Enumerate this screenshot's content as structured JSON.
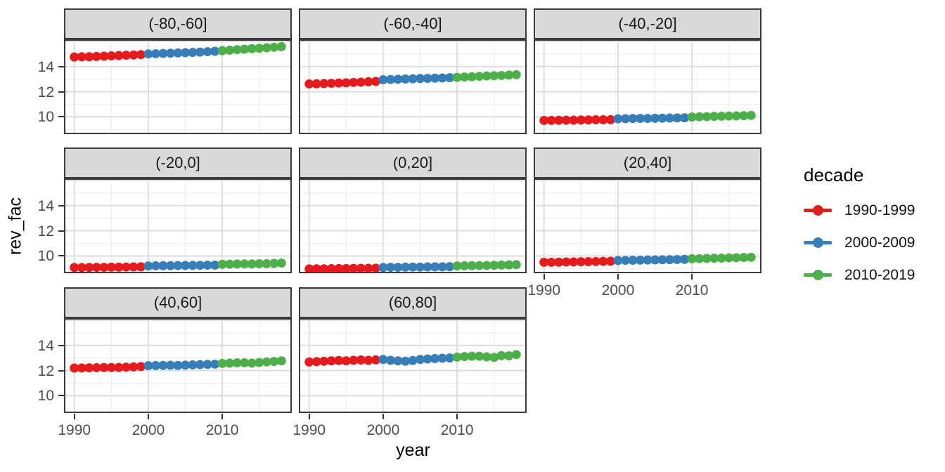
{
  "chart_data": {
    "type": "scatter",
    "title": "",
    "xlabel": "year",
    "ylabel": "rev_fac",
    "legend_title": "decade",
    "legend_position": "right",
    "grid": true,
    "x": [
      1990,
      1991,
      1992,
      1993,
      1994,
      1995,
      1996,
      1997,
      1998,
      1999,
      2000,
      2001,
      2002,
      2003,
      2004,
      2005,
      2006,
      2007,
      2008,
      2009,
      2010,
      2011,
      2012,
      2013,
      2014,
      2015,
      2016,
      2017,
      2018
    ],
    "xticks": [
      1990,
      2000,
      2010
    ],
    "yticks": [
      14,
      12,
      10
    ],
    "xlim": [
      1988.6,
      2019.4
    ],
    "ylim": [
      8.63,
      16.16
    ],
    "grid_major_y": [
      10,
      12,
      14,
      16
    ],
    "grid_minor_y": [
      9,
      11,
      13,
      15
    ],
    "grid_major_x": [
      1990,
      2000,
      2010
    ],
    "grid_minor_x": [
      1995,
      2005,
      2015
    ],
    "decades": [
      {
        "name": "1990-1999",
        "color": "#E41A1C",
        "start": 1990,
        "end": 1999
      },
      {
        "name": "2000-2009",
        "color": "#377EB8",
        "start": 2000,
        "end": 2009
      },
      {
        "name": "2010-2019",
        "color": "#4DAF4A",
        "start": 2010,
        "end": 2019
      }
    ],
    "facets": [
      {
        "label": "(-80,-60]",
        "values": [
          14.76,
          14.77,
          14.78,
          14.8,
          14.82,
          14.85,
          14.87,
          14.9,
          14.92,
          14.95,
          15.0,
          15.02,
          15.04,
          15.06,
          15.08,
          15.1,
          15.12,
          15.15,
          15.18,
          15.21,
          15.26,
          15.3,
          15.34,
          15.38,
          15.42,
          15.45,
          15.49,
          15.53,
          15.58
        ]
      },
      {
        "label": "(-60,-40]",
        "values": [
          12.62,
          12.63,
          12.65,
          12.67,
          12.69,
          12.71,
          12.74,
          12.76,
          12.79,
          12.82,
          12.95,
          12.97,
          12.99,
          13.01,
          13.03,
          13.05,
          13.06,
          13.08,
          13.09,
          13.11,
          13.14,
          13.17,
          13.19,
          13.22,
          13.25,
          13.27,
          13.29,
          13.32,
          13.35
        ]
      },
      {
        "label": "(-40,-20]",
        "values": [
          9.72,
          9.72,
          9.73,
          9.74,
          9.74,
          9.75,
          9.76,
          9.77,
          9.77,
          9.78,
          9.85,
          9.86,
          9.87,
          9.88,
          9.88,
          9.89,
          9.9,
          9.91,
          9.92,
          9.93,
          9.99,
          10.01,
          10.02,
          10.04,
          10.05,
          10.07,
          10.08,
          10.1,
          10.12
        ]
      },
      {
        "label": "(-20,0]",
        "values": [
          9.08,
          9.08,
          9.09,
          9.1,
          9.1,
          9.11,
          9.11,
          9.12,
          9.13,
          9.14,
          9.21,
          9.22,
          9.23,
          9.23,
          9.24,
          9.25,
          9.25,
          9.26,
          9.27,
          9.27,
          9.34,
          9.35,
          9.36,
          9.37,
          9.37,
          9.38,
          9.39,
          9.41,
          9.44
        ]
      },
      {
        "label": "(0,20]",
        "values": [
          8.97,
          8.98,
          8.98,
          8.99,
          9.0,
          9.0,
          9.01,
          9.02,
          9.02,
          9.03,
          9.09,
          9.1,
          9.1,
          9.11,
          9.12,
          9.12,
          9.13,
          9.14,
          9.14,
          9.15,
          9.21,
          9.22,
          9.23,
          9.24,
          9.25,
          9.26,
          9.28,
          9.29,
          9.31
        ]
      },
      {
        "label": "(20,40]",
        "values": [
          9.5,
          9.5,
          9.51,
          9.52,
          9.53,
          9.54,
          9.55,
          9.56,
          9.57,
          9.58,
          9.64,
          9.65,
          9.66,
          9.67,
          9.68,
          9.69,
          9.7,
          9.71,
          9.72,
          9.73,
          9.78,
          9.79,
          9.81,
          9.82,
          9.83,
          9.85,
          9.86,
          9.88,
          9.9
        ]
      },
      {
        "label": "(40,60]",
        "values": [
          12.2,
          12.21,
          12.22,
          12.23,
          12.24,
          12.24,
          12.25,
          12.27,
          12.29,
          12.32,
          12.39,
          12.4,
          12.41,
          12.42,
          12.41,
          12.43,
          12.45,
          12.47,
          12.49,
          12.51,
          12.57,
          12.59,
          12.61,
          12.62,
          12.59,
          12.64,
          12.69,
          12.72,
          12.77
        ]
      },
      {
        "label": "(60,80]",
        "values": [
          12.68,
          12.71,
          12.74,
          12.77,
          12.8,
          12.77,
          12.81,
          12.84,
          12.81,
          12.85,
          12.88,
          12.81,
          12.77,
          12.74,
          12.8,
          12.88,
          12.92,
          12.95,
          12.98,
          13.0,
          13.07,
          13.11,
          13.14,
          13.14,
          13.09,
          13.04,
          13.19,
          13.17,
          13.27
        ]
      }
    ]
  },
  "colors": {
    "strip_bg": "#D9D9D9",
    "strip_border": "#3B3B3B",
    "panel_border": "#3B3B3B",
    "grid_major": "#DBDBDB",
    "grid_minor": "#EDEDED",
    "axis_text": "#4D4D4D",
    "tick_mark": "#333333"
  }
}
